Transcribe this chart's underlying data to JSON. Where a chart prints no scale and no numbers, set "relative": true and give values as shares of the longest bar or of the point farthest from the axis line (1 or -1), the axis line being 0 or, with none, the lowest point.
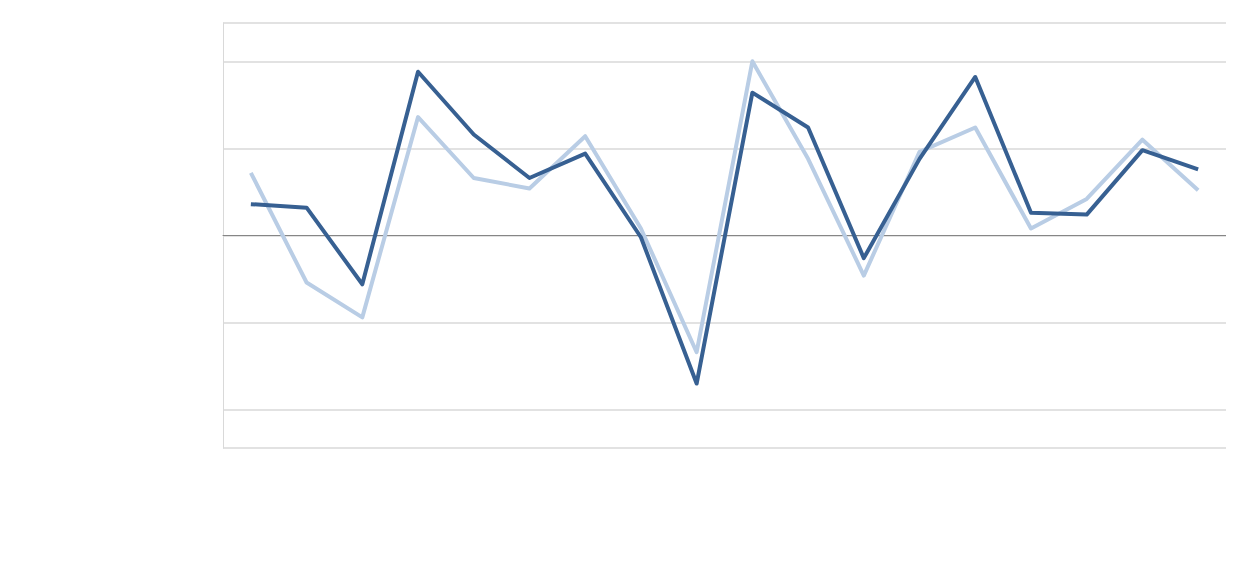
{
  "chart_data": {
    "type": "line",
    "relative": true,
    "grid": "y",
    "categories": [
      null,
      null,
      null,
      null,
      null,
      null,
      null,
      null,
      null,
      null,
      null,
      null,
      null,
      null,
      null,
      null,
      null,
      null
    ],
    "series": [
      {
        "color": "#b9cde5",
        "values": [
          0.36,
          -0.27,
          -0.47,
          0.68,
          0.33,
          0.27,
          0.57,
          0.04,
          -0.67,
          1,
          0.44,
          -0.23,
          0.48,
          0.62,
          0.04,
          0.21,
          0.55,
          0.26
        ]
      },
      {
        "color": "#376092",
        "values": [
          0.18,
          0.16,
          -0.28,
          0.94,
          0.58,
          0.33,
          0.47,
          -0.01,
          -0.85,
          0.82,
          0.62,
          -0.13,
          0.44,
          0.91,
          0.13,
          0.12,
          0.49,
          0.38
        ]
      }
    ]
  }
}
